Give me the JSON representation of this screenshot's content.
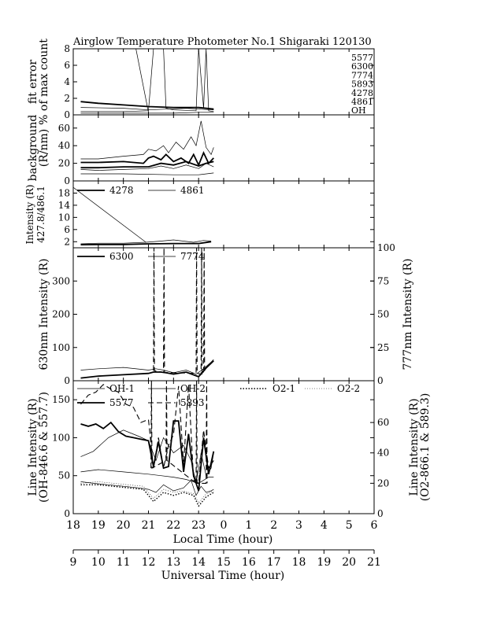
{
  "title": "Airglow Temperature Photometer No.1   Shigaraki   120130",
  "local_time_axis": {
    "label": "Local Time (hour)",
    "ticks": [
      "18",
      "19",
      "20",
      "21",
      "22",
      "23",
      "0",
      "1",
      "2",
      "3",
      "4",
      "5",
      "6"
    ]
  },
  "ut_axis": {
    "label": "Universal Time (hour)",
    "ticks": [
      "9",
      "10",
      "11",
      "12",
      "13",
      "14",
      "15",
      "16",
      "17",
      "18",
      "19",
      "20",
      "21"
    ]
  },
  "chart_data": [
    {
      "type": "line",
      "ylabel": [
        "fit error",
        "% of max count"
      ],
      "ylim": [
        0,
        8
      ],
      "yticks": [
        "0",
        "2",
        "4",
        "6",
        "8"
      ],
      "x_units": "local hours after 18:00",
      "labels": [
        "5577",
        "6300",
        "7774",
        "5893",
        "4278",
        "4861",
        "OH"
      ],
      "series": [
        {
          "style": "thick",
          "x": [
            0.3,
            1.0,
            2.0,
            3.0,
            4.0,
            5.0,
            5.6
          ],
          "values": [
            1.6,
            1.4,
            1.2,
            1.0,
            0.9,
            0.9,
            0.7
          ]
        },
        {
          "style": "thin",
          "x": [
            0.3,
            1.0,
            2.0,
            3.0,
            3.2,
            3.4,
            3.6,
            3.7,
            4.0,
            4.9,
            5.0,
            5.2,
            5.3,
            5.4,
            5.6
          ],
          "values": [
            0.4,
            0.4,
            0.4,
            0.5,
            8,
            8,
            8,
            0.8,
            0.6,
            0.5,
            8,
            0.8,
            8,
            0.5,
            0.4
          ]
        },
        {
          "style": "thin",
          "x": [
            0.3,
            2.0,
            3.0,
            3.7,
            4.5,
            5.0,
            5.6
          ],
          "values": [
            0.9,
            0.8,
            0.6,
            0.7,
            0.8,
            0.7,
            0.6
          ]
        },
        {
          "style": "thin",
          "x": [
            0.3,
            2.0,
            4.0,
            5.0,
            5.6
          ],
          "values": [
            0.2,
            0.2,
            0.2,
            0.3,
            0.3
          ]
        },
        {
          "style": "thin",
          "x": [
            2.5,
            3.0
          ],
          "values": [
            8,
            0.3
          ]
        }
      ]
    },
    {
      "type": "line",
      "ylabel": [
        "background",
        "(R/nm)"
      ],
      "ylim": [
        0,
        75
      ],
      "yticks": [
        "0",
        "20",
        "40",
        "60"
      ],
      "x_units": "local hours after 18:00",
      "series": [
        {
          "style": "thick",
          "x": [
            0.3,
            1.0,
            2.0,
            2.8,
            3.0,
            3.2,
            3.5,
            3.7,
            4.0,
            4.3,
            4.6,
            4.8,
            5.0,
            5.2,
            5.4,
            5.6
          ],
          "values": [
            21,
            21,
            22,
            20,
            26,
            28,
            24,
            30,
            22,
            26,
            20,
            30,
            18,
            32,
            20,
            26
          ]
        },
        {
          "style": "thick",
          "x": [
            0.3,
            1.0,
            2.0,
            3.0,
            3.5,
            4.0,
            4.5,
            5.0,
            5.3,
            5.6
          ],
          "values": [
            15,
            15,
            16,
            16,
            20,
            18,
            22,
            17,
            20,
            22
          ]
        },
        {
          "style": "thin",
          "x": [
            0.3,
            1.0,
            2.0,
            2.8,
            3.0,
            3.3,
            3.6,
            3.8,
            4.1,
            4.4,
            4.7,
            4.9,
            5.1,
            5.3,
            5.5,
            5.6
          ],
          "values": [
            25,
            25,
            28,
            30,
            36,
            34,
            40,
            32,
            44,
            36,
            50,
            40,
            68,
            38,
            30,
            38
          ]
        },
        {
          "style": "thin",
          "x": [
            0.3,
            1.0,
            2.0,
            3.0,
            3.5,
            4.0,
            4.5,
            5.0,
            5.3,
            5.6
          ],
          "values": [
            13,
            12,
            13,
            14,
            17,
            14,
            18,
            14,
            20,
            16
          ]
        },
        {
          "style": "thin",
          "x": [
            0.3,
            2.0,
            4.0,
            5.0,
            5.6
          ],
          "values": [
            8,
            8,
            7,
            7,
            9
          ]
        }
      ]
    },
    {
      "type": "line",
      "ylabel": [
        "Intensity (R)",
        "427.8/486.1"
      ],
      "ylim": [
        0,
        22
      ],
      "yticks": [
        "2",
        "6",
        "10",
        "14",
        "18"
      ],
      "x_units": "local hours after 18:00",
      "series": [
        {
          "name": "4278",
          "style": "thick",
          "x": [
            0.3,
            1.0,
            2.0,
            3.0,
            4.0,
            5.0,
            5.5
          ],
          "values": [
            1.0,
            1.1,
            1.1,
            1.3,
            1.4,
            1.4,
            2.0
          ]
        },
        {
          "name": "4861",
          "style": "thin",
          "x": [
            0.3,
            1.0,
            2.0,
            2.9,
            3.5,
            4.0,
            4.8,
            5.2,
            5.5
          ],
          "values": [
            1.3,
            1.5,
            1.5,
            1.8,
            2.2,
            2.6,
            1.8,
            2.4,
            2.2
          ]
        },
        {
          "style": "thin",
          "x": [
            -0.1,
            2.9
          ],
          "values": [
            20.5,
            1.8
          ]
        }
      ]
    },
    {
      "type": "line",
      "ylabel": "630nm Intensity (R)",
      "y2label": "777nm Intensity (R)",
      "ylim": [
        0,
        400
      ],
      "y2lim": [
        0,
        100
      ],
      "yticks": [
        "0",
        "100",
        "200",
        "300"
      ],
      "y2ticks": [
        "0",
        "25",
        "50",
        "75",
        "100"
      ],
      "x_units": "local hours after 18:00",
      "series": [
        {
          "name": "6300",
          "style": "thick",
          "x": [
            0.3,
            1.0,
            2.0,
            3.0,
            3.2,
            3.5,
            3.7,
            4.0,
            4.5,
            5.0,
            5.3,
            5.6
          ],
          "values": [
            8,
            14,
            18,
            22,
            26,
            26,
            24,
            20,
            26,
            12,
            38,
            60
          ]
        },
        {
          "name": "7774",
          "style": "thin",
          "axis": "right",
          "x": [
            0.3,
            1.0,
            2.0,
            3.0,
            3.3,
            3.6,
            4.0,
            4.5,
            4.9,
            5.2,
            5.5,
            5.6
          ],
          "values": [
            8,
            9,
            10,
            8,
            9,
            8,
            6,
            8,
            5,
            9,
            14,
            16
          ]
        },
        {
          "style": "dashed",
          "x": [
            3.2,
            3.22,
            3.24,
            3.6,
            3.62,
            3.64,
            4.9,
            4.92,
            4.94,
            5.1,
            5.12,
            5.14,
            5.2,
            5.22,
            5.24
          ],
          "values": [
            30,
            400,
            30,
            25,
            400,
            25,
            22,
            400,
            22,
            20,
            400,
            20,
            20,
            400,
            20
          ]
        }
      ]
    },
    {
      "type": "line",
      "ylabel": [
        "Line Intensity (R)",
        "(OH-846.6 & 557.7)"
      ],
      "y2label": [
        "Line Intensity (R)",
        "(O2-866.1 & 589.3)"
      ],
      "ylim": [
        0,
        175
      ],
      "y2lim": [
        0,
        87.5
      ],
      "yticks": [
        "0",
        "50",
        "100",
        "150"
      ],
      "y2ticks": [
        "0",
        "20",
        "40",
        "60"
      ],
      "x_units": "local hours after 18:00",
      "series": [
        {
          "name": "OH-1",
          "style": "thin",
          "x": [
            0.3,
            0.8,
            1.4,
            2.0,
            2.6,
            3.0,
            3.3,
            3.6,
            4.0,
            4.4,
            4.7,
            4.9,
            5.1,
            5.3,
            5.5,
            5.6
          ],
          "values": [
            42,
            40,
            38,
            36,
            34,
            32,
            28,
            38,
            30,
            34,
            44,
            24,
            36,
            28,
            30,
            32
          ]
        },
        {
          "name": "OH-2",
          "style": "thin",
          "x": [
            0.3,
            0.8,
            1.4,
            2.0,
            2.6,
            3.0,
            3.3,
            3.6,
            4.0,
            4.4,
            4.7,
            4.9,
            5.1,
            5.3,
            5.5,
            5.6
          ],
          "values": [
            75,
            82,
            100,
            110,
            102,
            96,
            70,
            100,
            80,
            90,
            70,
            40,
            80,
            50,
            60,
            80
          ]
        },
        {
          "name": "5577",
          "style": "thick",
          "x": [
            0.3,
            0.6,
            0.9,
            1.2,
            1.5,
            1.8,
            2.1,
            2.4,
            2.7,
            3.0,
            3.2,
            3.4,
            3.6,
            3.8,
            4.0,
            4.2,
            4.4,
            4.6,
            4.8,
            5.0,
            5.2,
            5.4,
            5.6
          ],
          "values": [
            118,
            115,
            118,
            112,
            120,
            108,
            102,
            100,
            98,
            96,
            62,
            95,
            60,
            62,
            122,
            122,
            55,
            105,
            50,
            30,
            100,
            52,
            82
          ]
        },
        {
          "name": "5893",
          "style": "dashed",
          "axis": "right",
          "x": [
            0.3,
            0.6,
            0.9,
            1.2,
            1.5,
            1.8,
            2.1,
            2.4,
            2.7,
            3.0,
            3.2,
            3.4,
            3.6,
            3.8,
            4.0,
            4.2,
            4.4,
            4.6,
            4.8,
            5.0,
            5.2,
            5.4,
            5.6
          ],
          "values": [
            72,
            78,
            80,
            85,
            82,
            80,
            72,
            70,
            60,
            62,
            30,
            50,
            30,
            45,
            52,
            84,
            32,
            85,
            22,
            20,
            55,
            30,
            35
          ]
        },
        {
          "name": "O2-1",
          "style": "dotted",
          "axis": "right",
          "x": [
            0.3,
            1.0,
            1.6,
            2.2,
            2.8,
            3.2,
            3.6,
            4.0,
            4.4,
            4.8,
            5.0,
            5.3,
            5.6
          ],
          "values": [
            19,
            19,
            18,
            17,
            16,
            8,
            14,
            12,
            14,
            12,
            5,
            11,
            14
          ]
        },
        {
          "name": "O2-2",
          "style": "thin-dotted",
          "axis": "right",
          "x": [
            0.3,
            1.0,
            1.6,
            2.2,
            2.8,
            3.2,
            3.6,
            4.0,
            4.4,
            4.8,
            5.0,
            5.3,
            5.6
          ],
          "values": [
            20,
            21,
            20,
            19,
            18,
            10,
            16,
            14,
            15,
            13,
            7,
            13,
            15
          ]
        },
        {
          "style": "thin",
          "x": [
            0.3,
            1.0,
            2.0,
            3.0,
            3.5,
            4.0,
            4.5,
            5.0,
            5.4,
            5.6
          ],
          "values": [
            55,
            58,
            55,
            52,
            50,
            48,
            45,
            40,
            48,
            48
          ]
        },
        {
          "style": "dashed",
          "x": [
            3.1,
            3.12,
            3.14,
            3.7,
            3.72,
            3.74,
            4.9,
            4.92,
            4.94,
            5.3,
            5.32,
            5.34
          ],
          "values": [
            60,
            175,
            60,
            70,
            175,
            70,
            40,
            175,
            40,
            40,
            175,
            40
          ]
        }
      ]
    }
  ]
}
